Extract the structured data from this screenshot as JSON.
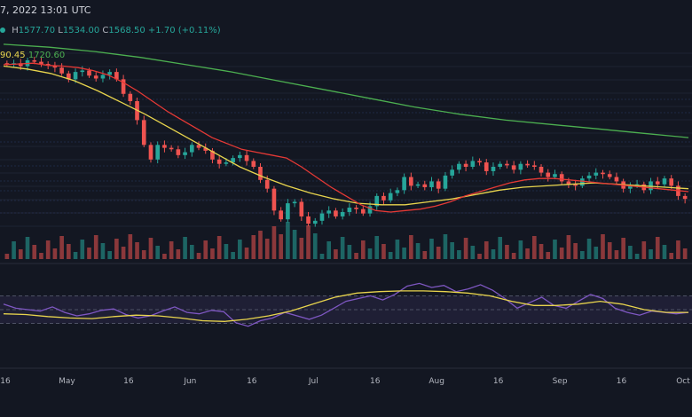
{
  "header": {
    "date": "7, 2022 13:01 UTC",
    "ohlc": {
      "h_label": "H",
      "h": "1577.70",
      "l_label": "L",
      "l": "1534.00",
      "c_label": "C",
      "c": "1568.50",
      "change": "+1.70 (+0.11%)"
    },
    "ma_values": {
      "ma1": "90.45",
      "ma2": "1720.60"
    }
  },
  "colors": {
    "background": "#131722",
    "up": "#26a69a",
    "down": "#ef5350",
    "ma20": "#e53935",
    "ma50": "#e8d44d",
    "ma200": "#4caf50",
    "rsi": "#7e57c2"
  },
  "chart_data": {
    "type": "candlestick",
    "x_ticks": [
      "16",
      "May",
      "16",
      "Jun",
      "16",
      "Jul",
      "16",
      "Aug",
      "16",
      "Sep",
      "16",
      "Oct"
    ],
    "ylim": [
      850,
      2200
    ],
    "closes": [
      2000,
      2010,
      1990,
      2030,
      2020,
      2005,
      1995,
      1980,
      1940,
      1900,
      1950,
      1960,
      1925,
      1905,
      1930,
      1950,
      1900,
      1800,
      1750,
      1620,
      1450,
      1350,
      1450,
      1430,
      1420,
      1380,
      1400,
      1450,
      1430,
      1410,
      1350,
      1320,
      1330,
      1360,
      1380,
      1340,
      1300,
      1210,
      1150,
      1000,
      940,
      1050,
      1060,
      960,
      910,
      930,
      980,
      1000,
      960,
      990,
      1020,
      1010,
      980,
      1030,
      1100,
      1070,
      1120,
      1140,
      1230,
      1170,
      1180,
      1160,
      1200,
      1150,
      1240,
      1280,
      1320,
      1300,
      1340,
      1330,
      1270,
      1300,
      1320,
      1310,
      1280,
      1320,
      1310,
      1300,
      1260,
      1230,
      1250,
      1200,
      1180,
      1170,
      1220,
      1240,
      1260,
      1250,
      1230,
      1200,
      1150,
      1170,
      1180,
      1140,
      1200,
      1180,
      1220,
      1170,
      1100,
      1080
    ],
    "ma20": [
      2000,
      2005,
      2010,
      1995,
      1990,
      1980,
      1960,
      1930,
      1880,
      1820,
      1750,
      1680,
      1620,
      1560,
      1500,
      1460,
      1420,
      1400,
      1380,
      1360,
      1300,
      1230,
      1160,
      1100,
      1040,
      1000,
      990,
      1000,
      1010,
      1030,
      1060,
      1100,
      1130,
      1160,
      1190,
      1210,
      1220,
      1220,
      1210,
      1200,
      1190,
      1180,
      1170,
      1160,
      1150,
      1140,
      1130
    ],
    "ma50": [
      1990,
      1970,
      1940,
      1890,
      1820,
      1740,
      1660,
      1570,
      1480,
      1390,
      1300,
      1230,
      1170,
      1120,
      1080,
      1050,
      1040,
      1040,
      1060,
      1080,
      1110,
      1140,
      1160,
      1170,
      1180,
      1190,
      1180,
      1170,
      1160,
      1150
    ],
    "ma200": [
      2140,
      2120,
      2090,
      2050,
      2000,
      1950,
      1890,
      1830,
      1770,
      1710,
      1660,
      1620,
      1590,
      1560,
      1530,
      1500
    ],
    "rsi": [
      58,
      52,
      50,
      48,
      54,
      46,
      41,
      44,
      49,
      51,
      43,
      38,
      41,
      48,
      54,
      46,
      44,
      49,
      47,
      31,
      26,
      34,
      38,
      46,
      41,
      36,
      42,
      52,
      62,
      66,
      70,
      64,
      72,
      84,
      88,
      82,
      85,
      76,
      80,
      86,
      78,
      66,
      52,
      60,
      68,
      56,
      52,
      62,
      72,
      66,
      52,
      46,
      42,
      48,
      46,
      44,
      46
    ],
    "rsi_ma": [
      44,
      43,
      40,
      38,
      37,
      40,
      42,
      41,
      38,
      34,
      33,
      36,
      41,
      48,
      58,
      68,
      74,
      76,
      77,
      77,
      76,
      74,
      70,
      62,
      56,
      56,
      58,
      62,
      58,
      50,
      46,
      46
    ]
  }
}
